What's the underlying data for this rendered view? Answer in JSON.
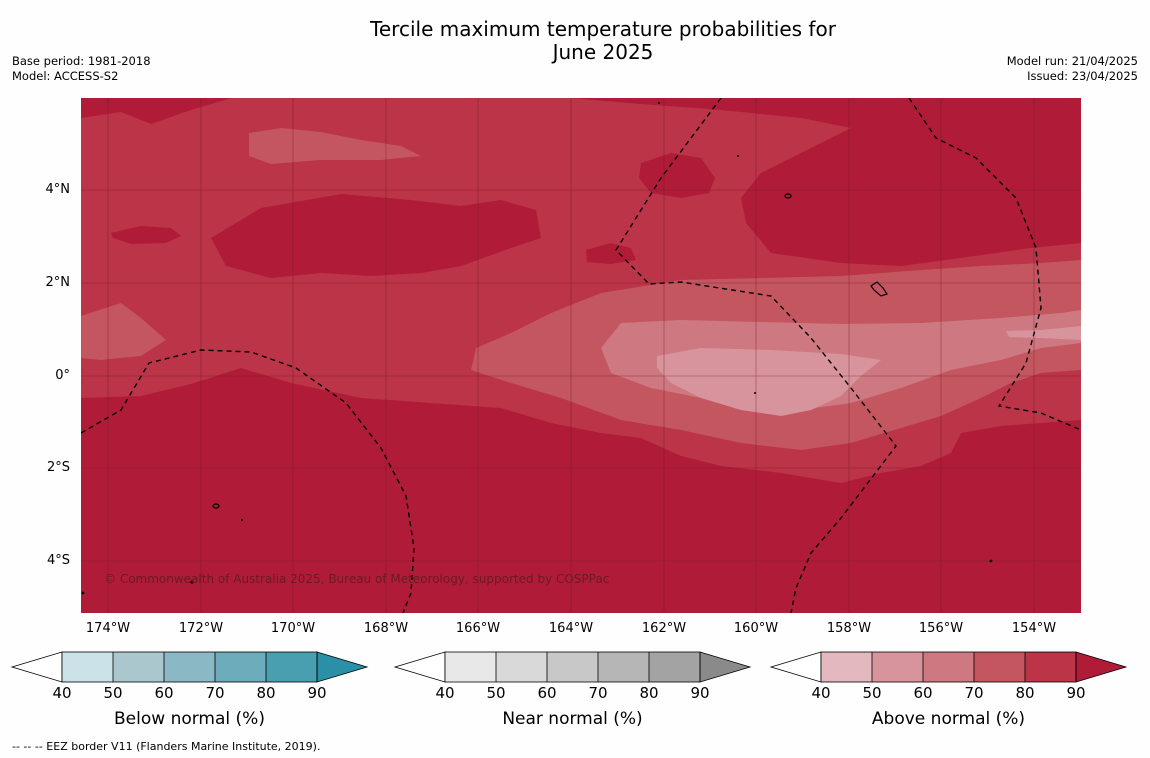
{
  "title_line1": "Tercile maximum temperature probabilities for",
  "title_line2": "June 2025",
  "meta_left": {
    "base_period": "Base period: 1981-2018",
    "model": "Model: ACCESS-S2"
  },
  "meta_right": {
    "model_run": "Model run: 21/04/2025",
    "issued": "Issued: 23/04/2025"
  },
  "lat_labels": [
    "4°N",
    "2°N",
    "0°",
    "2°S",
    "4°S"
  ],
  "lon_labels": [
    "174°W",
    "172°W",
    "170°W",
    "168°W",
    "166°W",
    "164°W",
    "162°W",
    "160°W",
    "158°W",
    "156°W",
    "154°W"
  ],
  "copyright": "© Commonwealth of Australia 2025, Bureau of Meteorology, supported by COSPPac",
  "colorbars": [
    {
      "label": "Below normal (%)",
      "ticks": [
        "40",
        "50",
        "60",
        "70",
        "80",
        "90"
      ],
      "colors": [
        "#cbe3e8",
        "#a9c7cd",
        "#8ab8c5",
        "#6cacbb",
        "#499eb0",
        "#2b90a7"
      ]
    },
    {
      "label": "Near normal (%)",
      "ticks": [
        "40",
        "50",
        "60",
        "70",
        "80",
        "90"
      ],
      "colors": [
        "#e8e8e8",
        "#d9d9d9",
        "#c8c8c8",
        "#b6b6b6",
        "#a3a3a3",
        "#8a8a8a"
      ]
    },
    {
      "label": "Above normal (%)",
      "ticks": [
        "40",
        "50",
        "60",
        "70",
        "80",
        "90"
      ],
      "colors": [
        "#e3b9bf",
        "#d8949d",
        "#ce7882",
        "#c4565f",
        "#bb3448",
        "#b01c37"
      ]
    }
  ],
  "footer": "--  --  -- EEZ border V11 (Flanders Marine Institute, 2019)."
}
